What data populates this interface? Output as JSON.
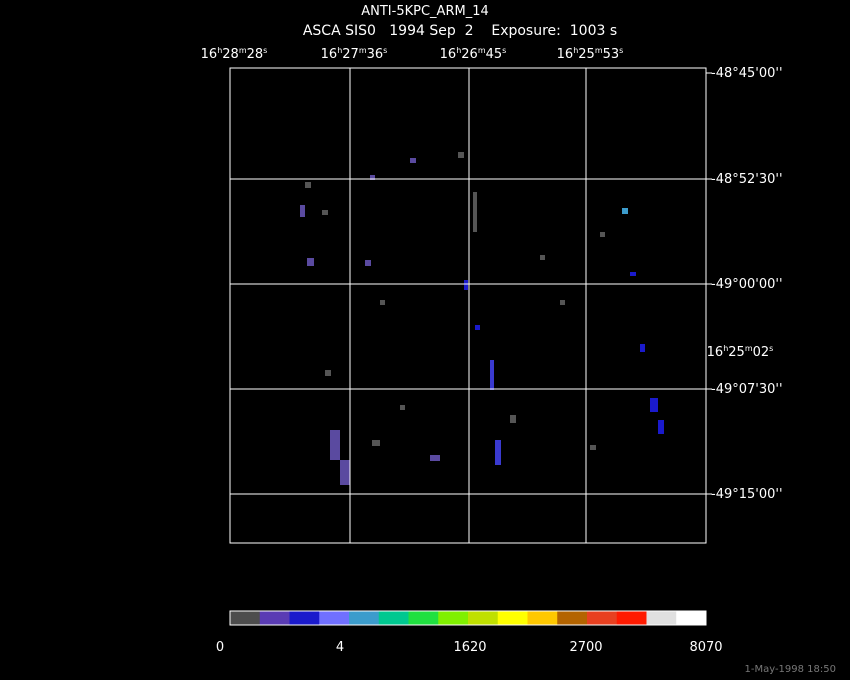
{
  "title": "ANTI-5KPC_ARM_14",
  "subtitle": "ASCA SIS0   1994 Sep  2    Exposure:  1003 s",
  "ra_labels": [
    [
      "16",
      "h",
      "28",
      "m",
      "28",
      "s"
    ],
    [
      "16",
      "h",
      "27",
      "m",
      "36",
      "s"
    ],
    [
      "16",
      "h",
      "26",
      "m",
      "45",
      "s"
    ],
    [
      "16",
      "h",
      "25",
      "m",
      "53",
      "s"
    ],
    [
      "16",
      "h",
      "25",
      "m",
      "02",
      "s"
    ]
  ],
  "dec_labels": [
    "-48°45'00''",
    "-48°52'30''",
    "-49°00'00''",
    "-49°07'30''",
    "-49°15'00''"
  ],
  "colorbar": {
    "colors": [
      "#4d4d4d",
      "#5a3cb4",
      "#1a1acc",
      "#7070ff",
      "#3c9ccc",
      "#00c890",
      "#20e040",
      "#80f000",
      "#c0e000",
      "#ffff00",
      "#ffc800",
      "#b46400",
      "#e84020",
      "#ff1a00",
      "#e0e0e0",
      "#ffffff"
    ],
    "labels": [
      "0",
      "4",
      "1620",
      "2700",
      "8070"
    ]
  },
  "timestamp": "1-May-1998 18:50"
}
